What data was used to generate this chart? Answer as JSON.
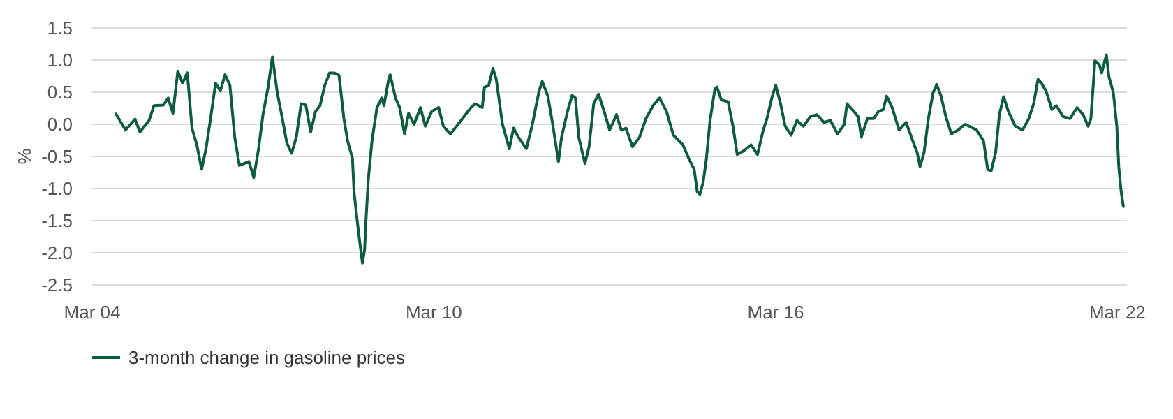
{
  "chart_data": {
    "type": "line",
    "ylabel": "%",
    "xlim": [
      "2004-03-01",
      "2022-05-01"
    ],
    "xticks": [
      {
        "value": "2004-03-01",
        "label": "Mar 04"
      },
      {
        "value": "2010-03-01",
        "label": "Mar 10"
      },
      {
        "value": "2016-03-01",
        "label": "Mar 16"
      },
      {
        "value": "2022-03-01",
        "label": "Mar 22"
      }
    ],
    "ylim": [
      -2.5,
      1.5
    ],
    "yticks": [
      {
        "value": 1.5,
        "label": "1.5"
      },
      {
        "value": 1,
        "label": "1.0"
      },
      {
        "value": 0.5,
        "label": "0.5"
      },
      {
        "value": 0,
        "label": "0.0"
      },
      {
        "value": -0.5,
        "label": "-0.5"
      },
      {
        "value": -1,
        "label": "-1.0"
      },
      {
        "value": -1.5,
        "label": "-1.5"
      },
      {
        "value": -2,
        "label": "-2.0"
      },
      {
        "value": -2.5,
        "label": "-2.5"
      }
    ],
    "grid": "y",
    "legend": "bottom left",
    "marker": "none",
    "line_style": "solid",
    "series": [
      {
        "name": "3-month change in gasoline prices",
        "color": "#0d5c3b",
        "x": [
          "2004-08-01",
          "2004-10-01",
          "2004-12-01",
          "2005-01-01",
          "2005-03-01",
          "2005-04-01",
          "2005-06-01",
          "2005-07-01",
          "2005-08-01",
          "2005-09-01",
          "2005-10-01",
          "2005-11-01",
          "2005-12-01",
          "2006-01-01",
          "2006-02-01",
          "2006-03-01",
          "2006-04-01",
          "2006-05-01",
          "2006-06-01",
          "2006-07-01",
          "2006-08-01",
          "2006-09-01",
          "2006-10-01",
          "2006-12-01",
          "2007-01-01",
          "2007-02-01",
          "2007-03-01",
          "2007-04-01",
          "2007-05-01",
          "2007-06-01",
          "2007-07-01",
          "2007-08-01",
          "2007-09-01",
          "2007-10-01",
          "2007-11-01",
          "2007-12-01",
          "2008-01-01",
          "2008-02-01",
          "2008-03-01",
          "2008-04-01",
          "2008-05-01",
          "2008-06-01",
          "2008-07-01",
          "2008-08-01",
          "2008-08-25",
          "2008-09-25",
          "2008-10-05",
          "2008-10-25",
          "2008-11-05",
          "2008-11-28",
          "2008-12-12",
          "2008-12-20",
          "2009-01-05",
          "2009-01-28",
          "2009-03-01",
          "2009-04-01",
          "2009-04-15",
          "2009-05-15",
          "2009-05-25",
          "2009-06-28",
          "2009-07-25",
          "2009-08-25",
          "2009-09-20",
          "2009-10-25",
          "2009-12-05",
          "2010-01-05",
          "2010-02-15",
          "2010-04-01",
          "2010-05-01",
          "2010-06-15",
          "2010-07-25",
          "2010-09-10",
          "2010-10-25",
          "2010-11-20",
          "2011-01-05",
          "2011-01-20",
          "2011-02-15",
          "2011-03-15",
          "2011-04-05",
          "2011-05-15",
          "2011-06-28",
          "2011-07-25",
          "2011-08-25",
          "2011-10-15",
          "2011-11-20",
          "2012-01-05",
          "2012-01-25",
          "2012-03-01",
          "2012-04-01",
          "2012-05-08",
          "2012-05-28",
          "2012-07-05",
          "2012-08-03",
          "2012-08-25",
          "2012-09-15",
          "2012-10-25",
          "2012-11-20",
          "2012-12-20",
          "2013-01-20",
          "2013-03-01",
          "2013-04-01",
          "2013-05-15",
          "2013-06-15",
          "2013-07-15",
          "2013-08-25",
          "2013-10-10",
          "2013-11-20",
          "2014-01-05",
          "2014-02-15",
          "2014-04-01",
          "2014-05-15",
          "2014-07-15",
          "2014-08-25",
          "2014-09-25",
          "2014-10-15",
          "2014-11-01",
          "2014-11-22",
          "2014-12-12",
          "2015-01-05",
          "2015-02-05",
          "2015-02-18",
          "2015-03-18",
          "2015-05-01",
          "2015-06-01",
          "2015-06-28",
          "2015-08-10",
          "2015-09-25",
          "2015-11-05",
          "2015-12-12",
          "2016-01-05",
          "2016-02-05",
          "2016-03-01",
          "2016-04-01",
          "2016-05-01",
          "2016-06-08",
          "2016-07-15",
          "2016-08-25",
          "2016-10-10",
          "2016-11-20",
          "2017-01-05",
          "2017-02-15",
          "2017-04-01",
          "2017-05-15",
          "2017-06-01",
          "2017-07-15",
          "2017-08-12",
          "2017-09-01",
          "2017-10-10",
          "2017-11-20",
          "2017-12-20",
          "2018-01-20",
          "2018-02-10",
          "2018-03-18",
          "2018-05-01",
          "2018-06-15",
          "2018-07-28",
          "2018-08-25",
          "2018-09-12",
          "2018-10-08",
          "2018-11-05",
          "2018-12-05",
          "2018-12-28",
          "2019-01-25",
          "2019-02-25",
          "2019-04-01",
          "2019-05-15",
          "2019-06-28",
          "2019-07-25",
          "2019-09-10",
          "2019-10-25",
          "2019-11-20",
          "2019-12-12",
          "2020-01-10",
          "2020-02-03",
          "2020-03-01",
          "2020-04-01",
          "2020-05-15",
          "2020-07-01",
          "2020-08-10",
          "2020-09-10",
          "2020-10-08",
          "2020-10-30",
          "2020-11-28",
          "2021-01-05",
          "2021-02-03",
          "2021-03-18",
          "2021-05-01",
          "2021-06-15",
          "2021-07-25",
          "2021-08-25",
          "2021-09-12",
          "2021-10-08",
          "2021-11-05",
          "2021-11-20",
          "2021-12-20",
          "2022-01-05",
          "2022-02-03",
          "2022-02-25",
          "2022-03-10",
          "2022-03-25",
          "2022-04-08"
        ],
        "values": [
          0.16,
          -0.09,
          0.08,
          -0.12,
          0.06,
          0.29,
          0.3,
          0.41,
          0.17,
          0.83,
          0.64,
          0.8,
          -0.06,
          -0.32,
          -0.7,
          -0.38,
          0.12,
          0.64,
          0.52,
          0.77,
          0.61,
          -0.2,
          -0.64,
          -0.58,
          -0.83,
          -0.38,
          0.15,
          0.55,
          1.05,
          0.49,
          0.12,
          -0.29,
          -0.45,
          -0.2,
          0.32,
          0.3,
          -0.12,
          0.2,
          0.29,
          0.61,
          0.8,
          0.8,
          0.76,
          0.09,
          -0.26,
          -0.53,
          -1.05,
          -1.49,
          -1.72,
          -2.16,
          -1.95,
          -1.52,
          -0.85,
          -0.26,
          0.26,
          0.41,
          0.29,
          0.7,
          0.77,
          0.41,
          0.26,
          -0.15,
          0.17,
          0,
          0.26,
          -0.03,
          0.2,
          0.26,
          -0.03,
          -0.15,
          -0.03,
          0.12,
          0.26,
          0.32,
          0.26,
          0.58,
          0.6,
          0.87,
          0.7,
          0,
          -0.38,
          -0.06,
          -0.2,
          -0.38,
          -0.03,
          0.52,
          0.67,
          0.44,
          0,
          -0.58,
          -0.2,
          0.2,
          0.45,
          0.41,
          -0.2,
          -0.61,
          -0.35,
          0.32,
          0.47,
          0.17,
          -0.09,
          0.15,
          -0.09,
          -0.06,
          -0.35,
          -0.2,
          0.09,
          0.29,
          0.41,
          0.2,
          -0.17,
          -0.32,
          -0.55,
          -0.7,
          -1.05,
          -1.09,
          -0.9,
          -0.55,
          0.06,
          0.55,
          0.58,
          0.38,
          0.35,
          -0.03,
          -0.47,
          -0.41,
          -0.32,
          -0.47,
          -0.09,
          0.09,
          0.41,
          0.61,
          0.32,
          -0.03,
          -0.17,
          0.06,
          -0.03,
          0.12,
          0.15,
          0.03,
          0.06,
          -0.15,
          0,
          0.32,
          0.2,
          0.12,
          -0.2,
          0.09,
          0.09,
          0.2,
          0.23,
          0.44,
          0.26,
          -0.09,
          0.03,
          -0.26,
          -0.44,
          -0.66,
          -0.44,
          0.09,
          0.49,
          0.62,
          0.44,
          0.12,
          -0.15,
          -0.09,
          0,
          -0.03,
          -0.09,
          -0.26,
          -0.7,
          -0.73,
          -0.44,
          0.15,
          0.43,
          0.2,
          -0.03,
          -0.09,
          0.09,
          0.32,
          0.7,
          0.64,
          0.52,
          0.23,
          0.29,
          0.12,
          0.09,
          0.26,
          0.15,
          -0.03,
          0.09,
          0.99,
          0.93,
          0.8,
          1.08,
          0.75,
          0.49,
          -0.03,
          -0.67,
          -1.05,
          -1.28
        ]
      }
    ]
  }
}
